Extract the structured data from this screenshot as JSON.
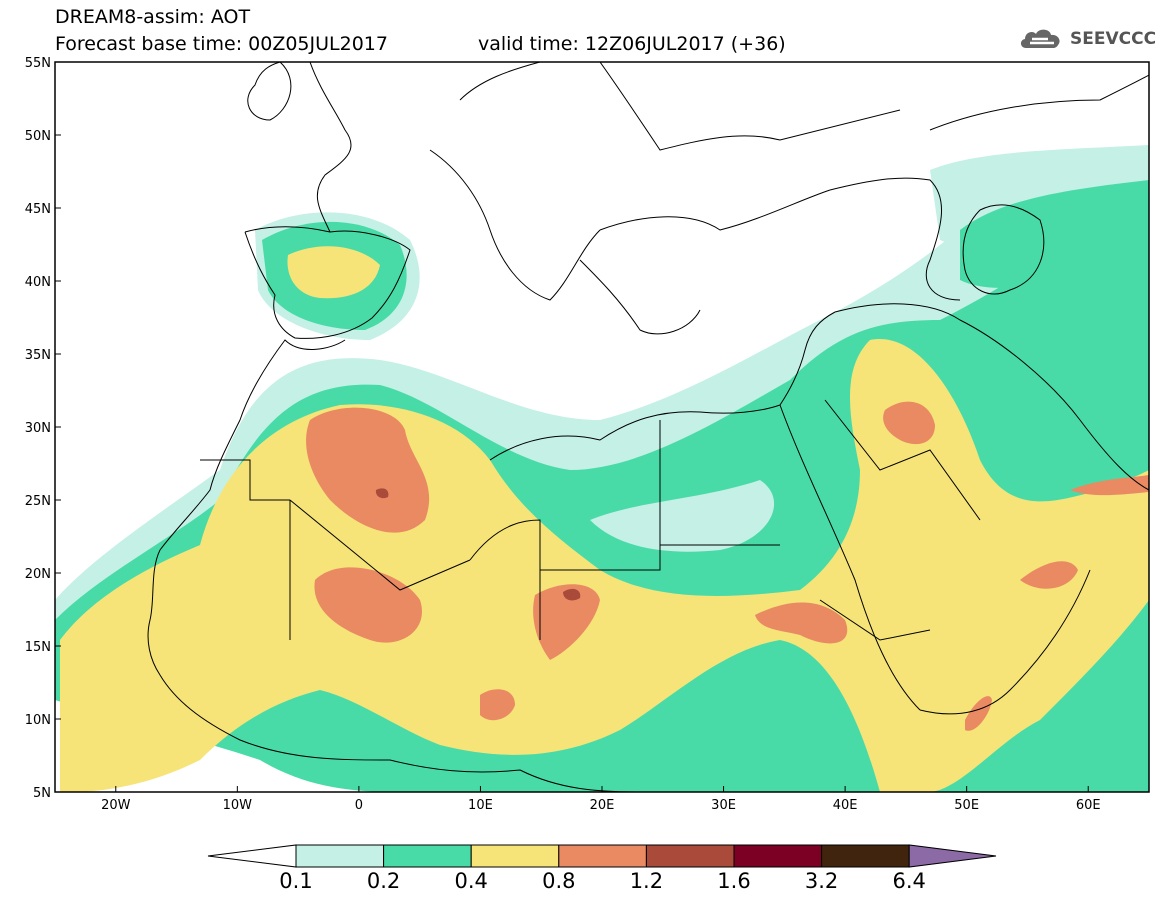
{
  "header": {
    "title_line1": "DREAM8-assim: AOT",
    "title_line2": "Forecast base time: 00Z05JUL2017",
    "valid_time": "valid time: 12Z06JUL2017 (+36)"
  },
  "logo": {
    "text": "SEEVCCC",
    "icon": "cloud-icon"
  },
  "map": {
    "variable": "AOT",
    "lon_range": [
      -25,
      65
    ],
    "lat_range": [
      5,
      55
    ],
    "lat_ticks": [
      "55N",
      "50N",
      "45N",
      "40N",
      "35N",
      "30N",
      "25N",
      "20N",
      "15N",
      "10N",
      "5N"
    ],
    "lon_ticks": [
      "20W",
      "10W",
      "0",
      "10E",
      "20E",
      "30E",
      "40E",
      "50E",
      "60E"
    ]
  },
  "colorbar": {
    "levels": [
      "0.1",
      "0.2",
      "0.4",
      "0.8",
      "1.2",
      "1.6",
      "3.2",
      "6.4"
    ],
    "colors": [
      "#ffffff",
      "#c4f0e6",
      "#48dba7",
      "#f6e479",
      "#e98a63",
      "#a94a3a",
      "#7b0023",
      "#40240e",
      "#8c6aa6"
    ]
  }
}
